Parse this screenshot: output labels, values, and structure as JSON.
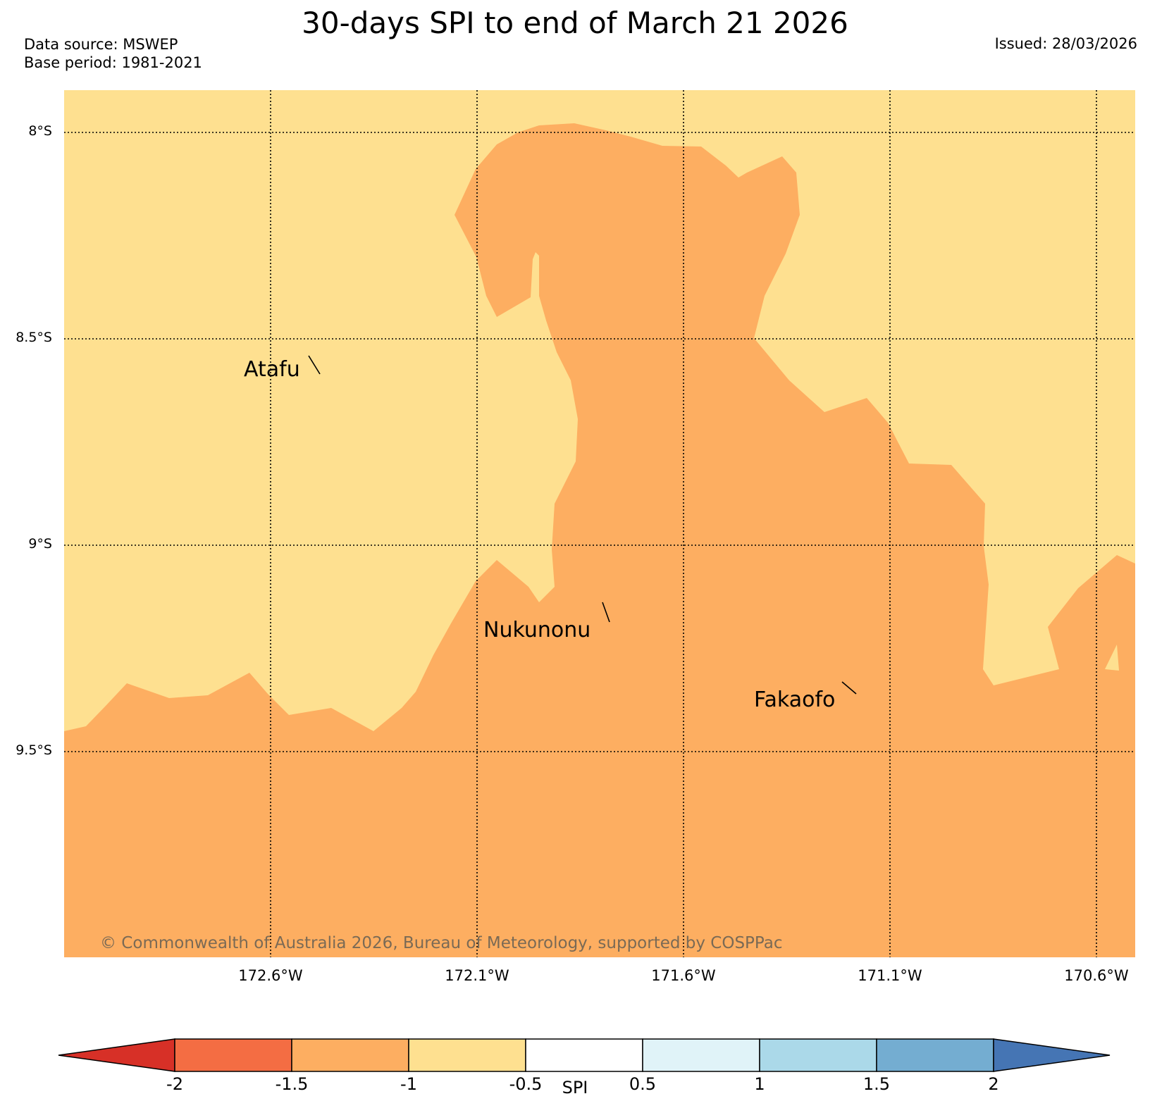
{
  "title": "30-days SPI to end of March 21 2026",
  "data_source": "Data source: MSWEP",
  "base_period": "Base period: 1981-2021",
  "issued": "Issued: 28/03/2026",
  "copyright": "© Commonwealth of Australia 2026, Bureau of Meteorology, supported by COSPPac",
  "lat_labels": [
    "8°S",
    "8.5°S",
    "9°S",
    "9.5°S"
  ],
  "lon_labels": [
    "172.6°W",
    "172.1°W",
    "171.6°W",
    "171.1°W",
    "170.6°W"
  ],
  "places": [
    {
      "name": "Atafu"
    },
    {
      "name": "Nukunonu"
    },
    {
      "name": "Fakaofo"
    }
  ],
  "colorbar": {
    "label": "SPI",
    "ticks": [
      "-2",
      "-1.5",
      "-1",
      "-0.5",
      "0.5",
      "1",
      "1.5",
      "2"
    ],
    "colors": [
      "#d73027",
      "#f46d43",
      "#fdae61",
      "#fee090",
      "#ffffff",
      "#e0f3f8",
      "#abd9e9",
      "#74add1",
      "#4575b4"
    ]
  },
  "map_fills": {
    "background_class": "-1 to -0.5",
    "background_color": "#fee090",
    "region_class": "-1.5 to -1",
    "region_color": "#fdae61"
  }
}
